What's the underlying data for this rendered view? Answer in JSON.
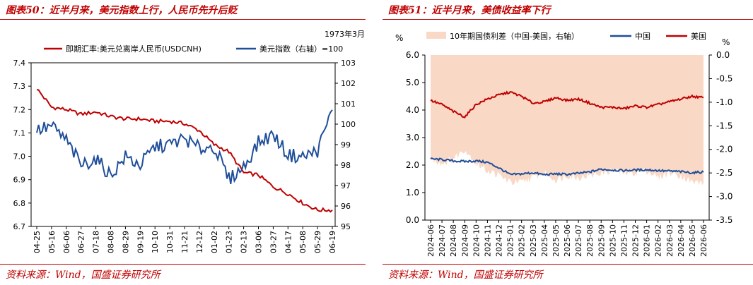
{
  "colors": {
    "red": "#c00000",
    "blue": "#1f4e9a",
    "salmon": "#f9d9c6"
  },
  "left": {
    "title": "图表50：近半月来，美元指数上行，人民币先升后贬",
    "source": "资料来源：Wind，国盛证券研究所",
    "chart_data": {
      "type": "line",
      "note": "1973年3月",
      "x": [
        "04-25",
        "05-16",
        "06-06",
        "06-27",
        "07-18",
        "08-08",
        "08-29",
        "09-19",
        "10-10",
        "10-31",
        "11-21",
        "12-12",
        "01-02",
        "01-23",
        "02-13",
        "03-06",
        "03-27",
        "04-17",
        "05-08",
        "05-29",
        "06-19"
      ],
      "ylim_left": [
        6.7,
        7.4
      ],
      "yticks_left": [
        "6.7",
        "6.8",
        "6.9",
        "7.0",
        "7.1",
        "7.2",
        "7.3",
        "7.4"
      ],
      "ylim_right": [
        95,
        103
      ],
      "yticks_right": [
        "95",
        "96",
        "97",
        "98",
        "99",
        "100",
        "101",
        "102",
        "103"
      ],
      "series": [
        {
          "name": "即期汇率:美元兑离岸人民币(USDCNH)",
          "axis": "left",
          "color": "#c00000",
          "values": [
            7.29,
            7.21,
            7.2,
            7.18,
            7.19,
            7.17,
            7.16,
            7.16,
            7.15,
            7.15,
            7.14,
            7.11,
            7.05,
            7.02,
            6.93,
            6.92,
            6.87,
            6.84,
            6.8,
            6.77,
            6.77
          ]
        },
        {
          "name": "美元指数（右轴）=100",
          "axis": "right",
          "color": "#1f4e9a",
          "values": [
            99.7,
            99.9,
            99.2,
            98.0,
            98.3,
            97.5,
            98.4,
            98.0,
            98.9,
            99.0,
            99.3,
            98.8,
            98.9,
            97.3,
            97.9,
            99.1,
            99.5,
            98.5,
            98.4,
            98.7,
            100.7
          ]
        }
      ]
    }
  },
  "right": {
    "title": "图表51：近半月来，美债收益率下行",
    "source": "资料来源：Wind，国盛证券研究所",
    "chart_data": {
      "type": "line",
      "x": [
        "2024-06",
        "2024-07",
        "2024-08",
        "2024-09",
        "2024-10",
        "2024-11",
        "2024-12",
        "2025-01",
        "2025-02",
        "2025-03",
        "2025-04",
        "2025-05",
        "2025-06",
        "2025-07",
        "2025-08",
        "2025-09",
        "2025-10",
        "2025-11",
        "2025-12",
        "2026-01",
        "2026-02",
        "2026-03",
        "2026-04",
        "2026-05",
        "2026-06"
      ],
      "ylabel_left": "%",
      "ylabel_right": "%",
      "ylim_left": [
        0.0,
        6.0
      ],
      "yticks_left": [
        "0.0",
        "1.0",
        "2.0",
        "3.0",
        "4.0",
        "5.0",
        "6.0"
      ],
      "ylim_right": [
        -3.5,
        0.0
      ],
      "yticks_right": [
        "0.0",
        "-0.5",
        "-1.0",
        "-1.5",
        "-2.0",
        "-2.5",
        "-3.0",
        "-3.5"
      ],
      "series": [
        {
          "name": "10年期国债利差（中国-美国，右轴）",
          "axis": "right",
          "kind": "area",
          "color": "#f9d9c6",
          "values": [
            -2.2,
            -2.3,
            -2.2,
            -2.0,
            -2.3,
            -2.45,
            -2.55,
            -2.7,
            -2.7,
            -2.6,
            -2.5,
            -2.65,
            -2.55,
            -2.6,
            -2.55,
            -2.5,
            -2.45,
            -2.5,
            -2.5,
            -2.45,
            -2.6,
            -2.5,
            -2.55,
            -2.7,
            -2.7
          ]
        },
        {
          "name": "中国",
          "axis": "left",
          "color": "#1f4e9a",
          "values": [
            2.22,
            2.2,
            2.15,
            2.13,
            2.15,
            2.1,
            1.9,
            1.65,
            1.68,
            1.72,
            1.65,
            1.68,
            1.66,
            1.7,
            1.75,
            1.85,
            1.82,
            1.8,
            1.82,
            1.83,
            1.8,
            1.78,
            1.76,
            1.72,
            1.75
          ]
        },
        {
          "name": "美国",
          "axis": "left",
          "color": "#c00000",
          "values": [
            4.35,
            4.2,
            3.95,
            3.75,
            4.2,
            4.4,
            4.55,
            4.65,
            4.5,
            4.25,
            4.3,
            4.45,
            4.35,
            4.4,
            4.25,
            4.1,
            4.1,
            4.05,
            4.15,
            4.1,
            4.2,
            4.3,
            4.4,
            4.5,
            4.45
          ]
        }
      ]
    }
  }
}
